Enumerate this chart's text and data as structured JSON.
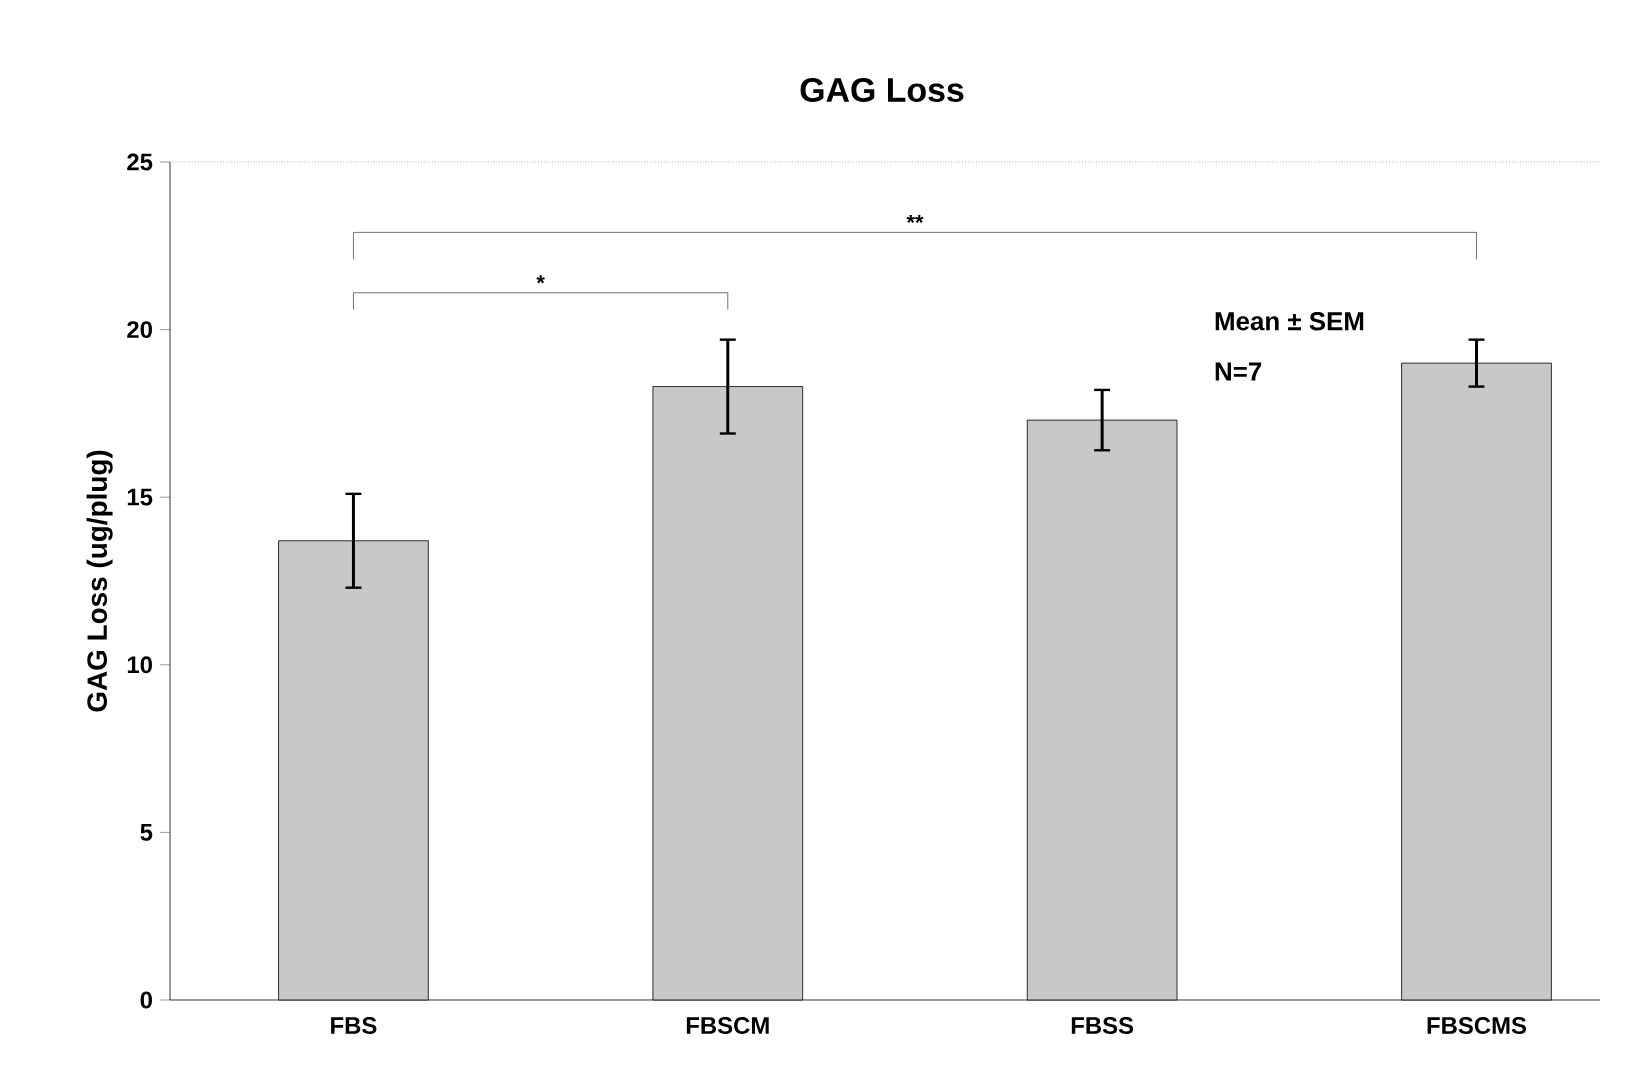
{
  "chart_data": {
    "type": "bar",
    "title": "GAG Loss",
    "ylabel": "GAG Loss (ug/plug)",
    "categories": [
      "FBS",
      "FBSCM",
      "FBSS",
      "FBSCMS"
    ],
    "values": [
      13.7,
      18.3,
      17.3,
      19.0
    ],
    "errors": [
      1.4,
      1.4,
      0.9,
      0.7
    ],
    "color": "#c8c8c8",
    "ylim": [
      0,
      25
    ],
    "yticks": [
      0,
      5,
      10,
      15,
      20,
      25
    ],
    "annotations": [
      "*",
      "**",
      "Mean ± SEM",
      "N=7"
    ]
  }
}
